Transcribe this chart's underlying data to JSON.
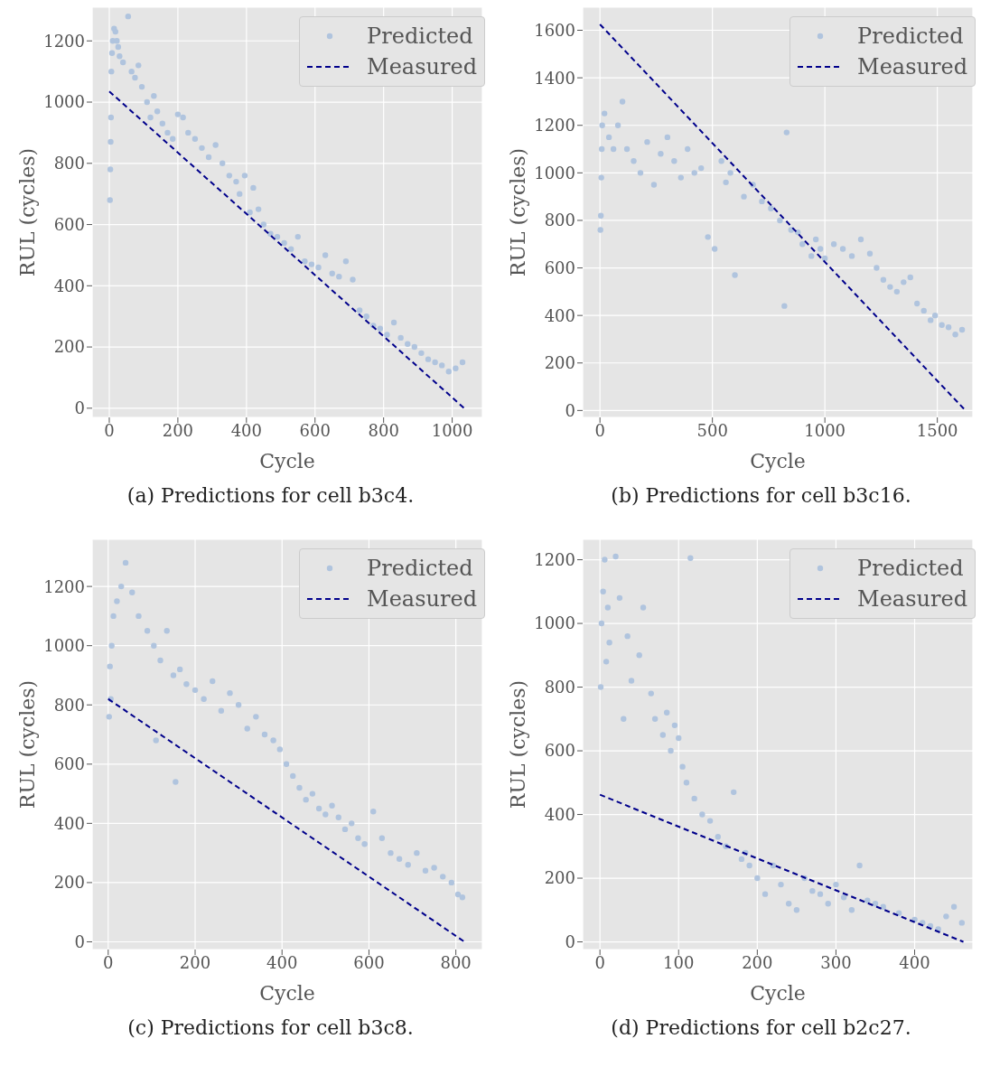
{
  "chart_data": [
    {
      "type": "scatter",
      "xlabel": "Cycle",
      "ylabel": "RUL (cycles)",
      "annotations": [
        "(a) Predictions for cell b3c4."
      ],
      "xlim": [
        -50,
        1088
      ],
      "ylim": [
        -30,
        1310
      ],
      "xticks": [
        0,
        200,
        400,
        600,
        800,
        1000
      ],
      "yticks": [
        0,
        200,
        400,
        600,
        800,
        1000,
        1200
      ],
      "grid": true,
      "legend": "top right",
      "series": [
        {
          "name": "Predicted",
          "type": "scatter",
          "marker": "circle",
          "color": "#b0c4de",
          "x": [
            2,
            3,
            4,
            5,
            6,
            8,
            10,
            14,
            18,
            22,
            26,
            30,
            40,
            55,
            65,
            75,
            85,
            95,
            110,
            120,
            130,
            140,
            155,
            170,
            185,
            200,
            215,
            230,
            250,
            270,
            290,
            310,
            330,
            350,
            370,
            380,
            395,
            410,
            420,
            435,
            450,
            470,
            490,
            510,
            530,
            550,
            570,
            590,
            610,
            630,
            650,
            670,
            690,
            710,
            730,
            750,
            770,
            790,
            810,
            830,
            850,
            870,
            890,
            910,
            930,
            950,
            970,
            990,
            1010,
            1030
          ],
          "values": [
            680,
            780,
            870,
            950,
            1100,
            1160,
            1200,
            1240,
            1230,
            1200,
            1180,
            1150,
            1130,
            1280,
            1100,
            1080,
            1120,
            1050,
            1000,
            950,
            1020,
            970,
            930,
            900,
            880,
            960,
            950,
            900,
            880,
            850,
            820,
            860,
            800,
            760,
            740,
            700,
            760,
            640,
            720,
            650,
            600,
            570,
            560,
            540,
            520,
            560,
            480,
            470,
            460,
            500,
            440,
            430,
            480,
            420,
            320,
            300,
            270,
            260,
            240,
            280,
            230,
            210,
            200,
            180,
            160,
            150,
            140,
            120,
            130,
            150
          ]
        },
        {
          "name": "Measured",
          "type": "line",
          "marker": "none",
          "line_style": "dashed",
          "color": "#00008b",
          "x": [
            0,
            1035
          ],
          "values": [
            1035,
            0
          ]
        }
      ]
    },
    {
      "type": "scatter",
      "xlabel": "Cycle",
      "ylabel": "RUL (cycles)",
      "annotations": [
        "(b) Predictions for cell b3c16."
      ],
      "xlim": [
        -77,
        1658
      ],
      "ylim": [
        -29,
        1697
      ],
      "xticks": [
        0,
        500,
        1000,
        1500
      ],
      "yticks": [
        0,
        200,
        400,
        600,
        800,
        1000,
        1200,
        1400,
        1600
      ],
      "grid": true,
      "legend": "top right",
      "series": [
        {
          "name": "Predicted",
          "type": "scatter",
          "marker": "circle",
          "color": "#b0c4de",
          "x": [
            2,
            4,
            6,
            8,
            10,
            20,
            40,
            60,
            80,
            100,
            120,
            150,
            180,
            210,
            240,
            270,
            300,
            330,
            360,
            390,
            420,
            450,
            480,
            510,
            540,
            560,
            580,
            600,
            640,
            680,
            720,
            760,
            800,
            820,
            830,
            850,
            880,
            900,
            940,
            960,
            980,
            1000,
            1040,
            1080,
            1120,
            1160,
            1200,
            1230,
            1260,
            1290,
            1320,
            1350,
            1380,
            1410,
            1440,
            1470,
            1490,
            1520,
            1550,
            1580,
            1610
          ],
          "values": [
            760,
            820,
            980,
            1100,
            1200,
            1250,
            1150,
            1100,
            1200,
            1300,
            1100,
            1050,
            1000,
            1130,
            950,
            1080,
            1150,
            1050,
            980,
            1100,
            1000,
            1020,
            730,
            680,
            1050,
            960,
            1000,
            570,
            900,
            950,
            880,
            850,
            800,
            440,
            1170,
            760,
            750,
            700,
            650,
            720,
            680,
            640,
            700,
            680,
            650,
            720,
            660,
            600,
            550,
            520,
            500,
            540,
            560,
            450,
            420,
            380,
            400,
            360,
            350,
            320,
            340
          ]
        },
        {
          "name": "Measured",
          "type": "line",
          "marker": "none",
          "line_style": "dashed",
          "color": "#00008b",
          "x": [
            0,
            1625
          ],
          "values": [
            1625,
            0
          ]
        }
      ]
    },
    {
      "type": "scatter",
      "xlabel": "Cycle",
      "ylabel": "RUL (cycles)",
      "annotations": [
        "(c) Predictions for cell b3c8."
      ],
      "xlim": [
        -37,
        861
      ],
      "ylim": [
        -26,
        1359
      ],
      "xticks": [
        0,
        200,
        400,
        600,
        800
      ],
      "yticks": [
        0,
        200,
        400,
        600,
        800,
        1000,
        1200
      ],
      "grid": true,
      "legend": "top right",
      "series": [
        {
          "name": "Predicted",
          "type": "scatter",
          "marker": "circle",
          "color": "#b0c4de",
          "x": [
            2,
            4,
            6,
            8,
            12,
            20,
            30,
            40,
            55,
            70,
            90,
            105,
            110,
            120,
            135,
            150,
            155,
            165,
            180,
            200,
            220,
            240,
            260,
            280,
            300,
            320,
            340,
            360,
            380,
            395,
            410,
            425,
            440,
            455,
            470,
            485,
            500,
            515,
            530,
            545,
            560,
            575,
            590,
            610,
            630,
            650,
            670,
            690,
            710,
            730,
            750,
            770,
            790,
            805,
            815
          ],
          "values": [
            760,
            930,
            820,
            1000,
            1100,
            1150,
            1200,
            1280,
            1180,
            1100,
            1050,
            1000,
            680,
            950,
            1050,
            900,
            540,
            920,
            870,
            850,
            820,
            880,
            780,
            840,
            800,
            720,
            760,
            700,
            680,
            650,
            600,
            560,
            520,
            480,
            500,
            450,
            430,
            460,
            420,
            380,
            400,
            350,
            330,
            440,
            350,
            300,
            280,
            260,
            300,
            240,
            250,
            220,
            200,
            160,
            150
          ]
        },
        {
          "name": "Measured",
          "type": "line",
          "marker": "none",
          "line_style": "dashed",
          "color": "#00008b",
          "x": [
            0,
            820
          ],
          "values": [
            820,
            0
          ]
        }
      ]
    },
    {
      "type": "scatter",
      "xlabel": "Cycle",
      "ylabel": "RUL (cycles)",
      "annotations": [
        "(d) Predictions for cell b2c27."
      ],
      "xlim": [
        -22,
        474
      ],
      "ylim": [
        -24,
        1264
      ],
      "xticks": [
        0,
        100,
        200,
        300,
        400
      ],
      "yticks": [
        0,
        200,
        400,
        600,
        800,
        1000,
        1200
      ],
      "grid": true,
      "legend": "top right",
      "series": [
        {
          "name": "Predicted",
          "type": "scatter",
          "marker": "circle",
          "color": "#b0c4de",
          "x": [
            1,
            2,
            4,
            6,
            8,
            10,
            12,
            20,
            25,
            30,
            35,
            40,
            50,
            55,
            65,
            70,
            80,
            85,
            90,
            95,
            100,
            105,
            110,
            115,
            120,
            130,
            140,
            150,
            160,
            170,
            180,
            185,
            190,
            200,
            210,
            220,
            230,
            240,
            250,
            260,
            270,
            280,
            290,
            300,
            310,
            320,
            330,
            340,
            350,
            360,
            380,
            400,
            410,
            420,
            430,
            440,
            450,
            460
          ],
          "values": [
            800,
            1000,
            1100,
            1200,
            880,
            1050,
            940,
            1210,
            1080,
            700,
            960,
            820,
            900,
            1050,
            780,
            700,
            650,
            720,
            600,
            680,
            640,
            550,
            500,
            1205,
            450,
            400,
            380,
            330,
            300,
            470,
            260,
            280,
            240,
            200,
            150,
            240,
            180,
            120,
            100,
            200,
            160,
            150,
            120,
            180,
            140,
            100,
            240,
            130,
            120,
            110,
            90,
            70,
            60,
            50,
            40,
            80,
            110,
            60
          ]
        },
        {
          "name": "Measured",
          "type": "line",
          "marker": "none",
          "line_style": "dashed",
          "color": "#00008b",
          "x": [
            0,
            462
          ],
          "values": [
            462,
            0
          ]
        }
      ]
    }
  ]
}
